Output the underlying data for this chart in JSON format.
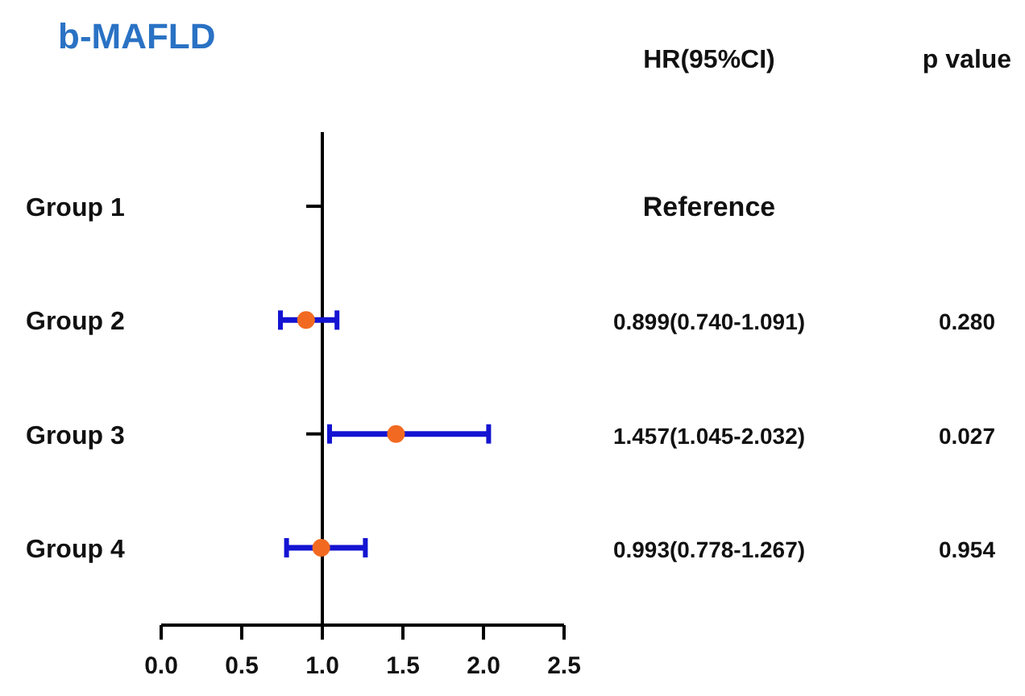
{
  "chart_data": {
    "type": "scatter",
    "title": "b-MAFLD",
    "orientation": "horizontal",
    "marker": "circle",
    "categories": [
      "Group 1",
      "Group 2",
      "Group 3",
      "Group 4"
    ],
    "values": [
      null,
      0.899,
      1.457,
      0.993
    ],
    "color": "#f26a21",
    "errors": [
      null,
      [
        0.74,
        1.091
      ],
      [
        1.045,
        2.032
      ],
      [
        0.778,
        1.267
      ]
    ],
    "value_labels": [
      "Reference",
      "0.899(0.740-1.091)",
      "1.457(1.045-2.032)",
      "0.993(0.778-1.267)"
    ],
    "annotations": [
      "HR(95%CI)",
      "p value",
      "0.280",
      "0.027",
      "0.954"
    ],
    "xlim": [
      0,
      2.5
    ],
    "xticks": [
      {
        "value": 0,
        "label": "0.0"
      },
      {
        "value": 0.5,
        "label": "0.5"
      },
      {
        "value": 1,
        "label": "1.0"
      },
      {
        "value": 1.5,
        "label": "1.5"
      },
      {
        "value": 2,
        "label": "2.0"
      },
      {
        "value": 2.5,
        "label": "2.5"
      }
    ],
    "ref_lines": [
      {
        "axis": "x",
        "value": 1,
        "color": "#000000"
      }
    ]
  }
}
